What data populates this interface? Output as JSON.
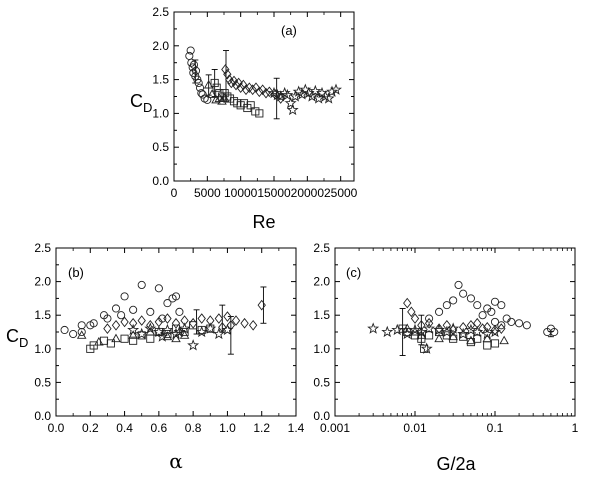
{
  "chart_data": [
    {
      "type": "scatter",
      "panel": "(a)",
      "ylabel": "C",
      "ylabel_sub": "D",
      "xlabel": "Re",
      "xlim": [
        0,
        27000
      ],
      "ylim": [
        0,
        2.5
      ],
      "x_scale": "linear",
      "xticks": [
        "0",
        "5000",
        "10000",
        "15000",
        "20000",
        "25000"
      ],
      "yticks": [
        "0.0",
        "0.5",
        "1.0",
        "1.5",
        "2.0",
        "2.5"
      ],
      "series": [
        {
          "marker": "circle",
          "points": [
            [
              2300,
              1.85
            ],
            [
              2500,
              1.93
            ],
            [
              2600,
              1.75
            ],
            [
              2800,
              1.68
            ],
            [
              2900,
              1.6
            ],
            [
              3000,
              1.72
            ],
            [
              3200,
              1.55
            ],
            [
              3300,
              1.63
            ],
            [
              3500,
              1.5
            ],
            [
              3700,
              1.45
            ],
            [
              3900,
              1.38
            ],
            [
              4100,
              1.3
            ],
            [
              4300,
              1.28
            ],
            [
              4600,
              1.22
            ],
            [
              5000,
              1.2
            ]
          ]
        },
        {
          "marker": "triangle",
          "points": [
            [
              5200,
              1.42
            ],
            [
              5700,
              1.28
            ],
            [
              6300,
              1.2
            ],
            [
              6800,
              1.22
            ],
            [
              7200,
              1.18
            ],
            [
              7600,
              1.22
            ]
          ]
        },
        {
          "marker": "square",
          "points": [
            [
              6100,
              1.45
            ],
            [
              6400,
              1.38
            ],
            [
              6800,
              1.3
            ],
            [
              7200,
              1.25
            ],
            [
              7600,
              1.3
            ],
            [
              8000,
              1.25
            ],
            [
              8400,
              1.22
            ],
            [
              9000,
              1.18
            ],
            [
              9500,
              1.15
            ],
            [
              10000,
              1.12
            ],
            [
              10500,
              1.15
            ],
            [
              11000,
              1.08
            ],
            [
              11500,
              1.12
            ],
            [
              12200,
              1.03
            ],
            [
              12800,
              1.0
            ]
          ]
        },
        {
          "marker": "diamond",
          "points": [
            [
              7700,
              1.65
            ],
            [
              8000,
              1.58
            ],
            [
              8300,
              1.5
            ],
            [
              8600,
              1.45
            ],
            [
              9000,
              1.48
            ],
            [
              9300,
              1.42
            ],
            [
              9700,
              1.45
            ],
            [
              10000,
              1.38
            ],
            [
              10400,
              1.42
            ],
            [
              10800,
              1.35
            ],
            [
              11300,
              1.38
            ],
            [
              11800,
              1.35
            ],
            [
              12300,
              1.38
            ],
            [
              12800,
              1.32
            ],
            [
              13300,
              1.35
            ],
            [
              13800,
              1.3
            ],
            [
              14300,
              1.32
            ],
            [
              15200,
              1.28
            ],
            [
              16000,
              1.22
            ]
          ]
        },
        {
          "marker": "star",
          "points": [
            [
              15000,
              1.3
            ],
            [
              15500,
              1.27
            ],
            [
              16000,
              1.25
            ],
            [
              16600,
              1.3
            ],
            [
              17000,
              1.27
            ],
            [
              17500,
              1.15
            ],
            [
              17800,
              1.05
            ],
            [
              18200,
              1.25
            ],
            [
              18700,
              1.32
            ],
            [
              19200,
              1.28
            ],
            [
              19700,
              1.35
            ],
            [
              20200,
              1.3
            ],
            [
              20700,
              1.25
            ],
            [
              21200,
              1.33
            ],
            [
              21700,
              1.22
            ],
            [
              22200,
              1.3
            ],
            [
              22700,
              1.25
            ],
            [
              23200,
              1.22
            ],
            [
              23700,
              1.32
            ],
            [
              24300,
              1.35
            ]
          ]
        }
      ],
      "error_bars": [
        [
          3200,
          1.62,
          0.17
        ],
        [
          5200,
          1.42,
          0.15
        ],
        [
          6100,
          1.45,
          0.2
        ],
        [
          7800,
          1.55,
          0.38
        ],
        [
          15400,
          1.22,
          0.3
        ]
      ]
    },
    {
      "type": "scatter",
      "panel": "(b)",
      "ylabel": "C",
      "ylabel_sub": "D",
      "xlabel": "α",
      "xlim": [
        0,
        1.4
      ],
      "ylim": [
        0,
        2.5
      ],
      "x_scale": "linear",
      "xticks": [
        "0.0",
        "0.2",
        "0.4",
        "0.6",
        "0.8",
        "1.0",
        "1.2",
        "1.4"
      ],
      "yticks": [
        "0.0",
        "0.5",
        "1.0",
        "1.5",
        "2.0",
        "2.5"
      ],
      "series": [
        {
          "marker": "circle",
          "points": [
            [
              0.05,
              1.28
            ],
            [
              0.1,
              1.22
            ],
            [
              0.15,
              1.25
            ],
            [
              0.2,
              1.35
            ],
            [
              0.22,
              1.38
            ],
            [
              0.28,
              1.5
            ],
            [
              0.3,
              1.45
            ],
            [
              0.35,
              1.6
            ],
            [
              0.38,
              1.5
            ],
            [
              0.4,
              1.78
            ],
            [
              0.45,
              1.58
            ],
            [
              0.5,
              1.95
            ],
            [
              0.55,
              1.55
            ],
            [
              0.6,
              1.9
            ],
            [
              0.62,
              1.45
            ],
            [
              0.65,
              1.68
            ],
            [
              0.68,
              1.75
            ],
            [
              0.7,
              1.78
            ],
            [
              0.72,
              1.55
            ],
            [
              0.15,
              1.35
            ]
          ]
        },
        {
          "marker": "triangle",
          "points": [
            [
              0.15,
              1.2
            ],
            [
              0.25,
              1.1
            ],
            [
              0.35,
              1.15
            ],
            [
              0.45,
              1.2
            ],
            [
              0.55,
              1.25
            ],
            [
              0.65,
              1.18
            ],
            [
              0.7,
              1.15
            ],
            [
              0.75,
              1.2
            ]
          ]
        },
        {
          "marker": "square",
          "points": [
            [
              0.2,
              1.0
            ],
            [
              0.22,
              1.05
            ],
            [
              0.28,
              1.12
            ],
            [
              0.32,
              1.08
            ],
            [
              0.4,
              1.15
            ],
            [
              0.45,
              1.12
            ],
            [
              0.5,
              1.2
            ],
            [
              0.55,
              1.15
            ],
            [
              0.6,
              1.25
            ],
            [
              0.65,
              1.22
            ],
            [
              0.7,
              1.3
            ],
            [
              0.75,
              1.25
            ],
            [
              0.8,
              1.35
            ],
            [
              0.85,
              1.28
            ],
            [
              0.9,
              1.3
            ]
          ]
        },
        {
          "marker": "diamond",
          "points": [
            [
              0.3,
              1.3
            ],
            [
              0.35,
              1.35
            ],
            [
              0.4,
              1.4
            ],
            [
              0.45,
              1.38
            ],
            [
              0.5,
              1.42
            ],
            [
              0.55,
              1.35
            ],
            [
              0.6,
              1.4
            ],
            [
              0.65,
              1.45
            ],
            [
              0.7,
              1.38
            ],
            [
              0.75,
              1.42
            ],
            [
              0.8,
              1.38
            ],
            [
              0.85,
              1.45
            ],
            [
              0.9,
              1.42
            ],
            [
              0.95,
              1.45
            ],
            [
              1.0,
              1.48
            ],
            [
              1.05,
              1.42
            ],
            [
              1.1,
              1.38
            ],
            [
              1.15,
              1.35
            ],
            [
              1.2,
              1.65
            ],
            [
              0.97,
              1.32
            ],
            [
              1.02,
              1.35
            ]
          ]
        },
        {
          "marker": "star",
          "points": [
            [
              0.45,
              1.28
            ],
            [
              0.5,
              1.22
            ],
            [
              0.55,
              1.3
            ],
            [
              0.6,
              1.25
            ],
            [
              0.65,
              1.28
            ],
            [
              0.7,
              1.22
            ],
            [
              0.75,
              1.3
            ],
            [
              0.8,
              1.05
            ],
            [
              0.85,
              1.25
            ],
            [
              0.9,
              1.3
            ],
            [
              0.95,
              1.22
            ],
            [
              1.0,
              1.28
            ],
            [
              0.62,
              1.18
            ],
            [
              0.72,
              1.25
            ]
          ]
        }
      ],
      "error_bars": [
        [
          0.82,
          1.4,
          0.18
        ],
        [
          0.97,
          1.45,
          0.2
        ],
        [
          1.02,
          1.2,
          0.28
        ],
        [
          1.21,
          1.65,
          0.27
        ]
      ]
    },
    {
      "type": "scatter",
      "panel": "(c)",
      "xlabel": "G/2a",
      "xlim": [
        0.001,
        1
      ],
      "ylim": [
        0,
        2.5
      ],
      "x_scale": "log",
      "xticks": [
        "0.001",
        "0.01",
        "0.1",
        "1"
      ],
      "yticks": [
        "0.0",
        "0.5",
        "1.0",
        "1.5",
        "2.0",
        "2.5"
      ],
      "series": [
        {
          "marker": "circle",
          "points": [
            [
              0.015,
              1.45
            ],
            [
              0.02,
              1.55
            ],
            [
              0.025,
              1.65
            ],
            [
              0.03,
              1.72
            ],
            [
              0.035,
              1.95
            ],
            [
              0.04,
              1.82
            ],
            [
              0.05,
              1.75
            ],
            [
              0.06,
              1.65
            ],
            [
              0.07,
              1.5
            ],
            [
              0.08,
              1.6
            ],
            [
              0.09,
              1.55
            ],
            [
              0.1,
              1.7
            ],
            [
              0.12,
              1.65
            ],
            [
              0.14,
              1.45
            ],
            [
              0.16,
              1.4
            ],
            [
              0.2,
              1.38
            ],
            [
              0.25,
              1.35
            ],
            [
              0.45,
              1.25
            ],
            [
              0.5,
              1.3
            ],
            [
              0.55,
              1.25
            ],
            [
              0.1,
              1.4
            ],
            [
              0.12,
              1.35
            ]
          ]
        },
        {
          "marker": "triangle",
          "points": [
            [
              0.008,
              1.3
            ],
            [
              0.01,
              1.25
            ],
            [
              0.012,
              1.2
            ],
            [
              0.02,
              1.15
            ],
            [
              0.03,
              1.18
            ],
            [
              0.05,
              1.12
            ],
            [
              0.08,
              1.15
            ],
            [
              0.13,
              1.12
            ]
          ]
        },
        {
          "marker": "square",
          "points": [
            [
              0.007,
              1.3
            ],
            [
              0.008,
              1.25
            ],
            [
              0.01,
              1.2
            ],
            [
              0.012,
              1.15
            ],
            [
              0.015,
              1.2
            ],
            [
              0.02,
              1.25
            ],
            [
              0.025,
              1.2
            ],
            [
              0.03,
              1.15
            ],
            [
              0.04,
              1.18
            ],
            [
              0.05,
              1.1
            ],
            [
              0.06,
              1.15
            ],
            [
              0.08,
              1.05
            ],
            [
              0.1,
              1.08
            ],
            [
              0.013,
              1.0
            ]
          ]
        },
        {
          "marker": "diamond",
          "points": [
            [
              0.008,
              1.68
            ],
            [
              0.009,
              1.55
            ],
            [
              0.01,
              1.45
            ],
            [
              0.012,
              1.35
            ],
            [
              0.015,
              1.38
            ],
            [
              0.02,
              1.3
            ],
            [
              0.025,
              1.35
            ],
            [
              0.03,
              1.28
            ],
            [
              0.04,
              1.32
            ],
            [
              0.05,
              1.35
            ],
            [
              0.06,
              1.38
            ],
            [
              0.07,
              1.3
            ],
            [
              0.08,
              1.32
            ],
            [
              0.1,
              1.28
            ],
            [
              0.12,
              1.3
            ]
          ]
        },
        {
          "marker": "star",
          "points": [
            [
              0.003,
              1.3
            ],
            [
              0.0045,
              1.25
            ],
            [
              0.006,
              1.28
            ],
            [
              0.008,
              1.22
            ],
            [
              0.01,
              1.28
            ],
            [
              0.012,
              1.25
            ],
            [
              0.015,
              1.3
            ],
            [
              0.02,
              1.28
            ],
            [
              0.025,
              1.25
            ],
            [
              0.03,
              1.3
            ],
            [
              0.04,
              1.22
            ],
            [
              0.05,
              1.28
            ],
            [
              0.06,
              1.25
            ],
            [
              0.08,
              1.22
            ],
            [
              0.1,
              1.25
            ],
            [
              0.014,
              1.0
            ]
          ]
        }
      ],
      "error_bars": [
        [
          0.007,
          1.25,
          0.35
        ],
        [
          0.012,
          1.28,
          0.22
        ],
        [
          0.5,
          1.22,
          0.04
        ]
      ]
    }
  ]
}
